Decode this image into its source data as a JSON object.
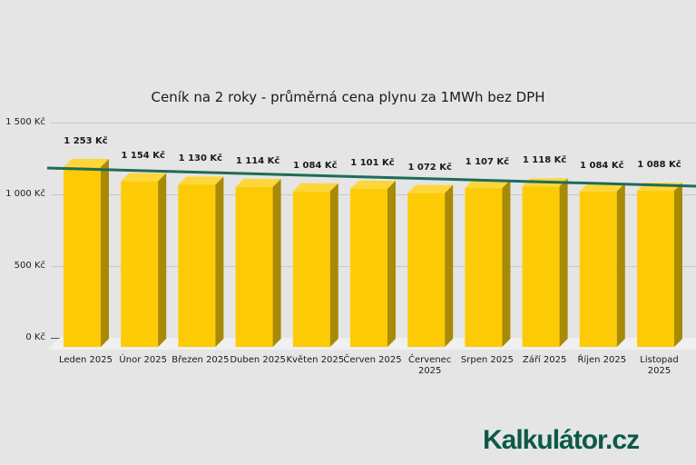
{
  "chart_data": {
    "type": "bar",
    "title": "Ceník na 2 roky - průměrná cena plynu za 1MWh bez DPH",
    "xlabel": "",
    "ylabel": "",
    "categories": [
      "Leden 2025",
      "Únor 2025",
      "Březen 2025",
      "Duben 2025",
      "Květen 2025",
      "Červen 2025",
      "Červenec 2025",
      "Srpen 2025",
      "Září 2025",
      "Říjen 2025",
      "Listopad 2025"
    ],
    "values": [
      1253,
      1154,
      1130,
      1114,
      1084,
      1101,
      1072,
      1107,
      1118,
      1084,
      1088
    ],
    "value_labels": [
      "1 253 Kč",
      "1 154 Kč",
      "1 130 Kč",
      "1 114 Kč",
      "1 084 Kč",
      "1 101 Kč",
      "1 072 Kč",
      "1 107 Kč",
      "1 118 Kč",
      "1 084 Kč",
      "1 088 Kč"
    ],
    "ylim": [
      0,
      1500
    ],
    "yticks": [
      "0 Kč",
      "500 Kč",
      "1 000 Kč",
      "1 500 Kč"
    ],
    "grid": true,
    "legend": "none",
    "trendline": {
      "type": "linear",
      "color": "#1f6b5a"
    },
    "bar_color": "#fdcb05"
  },
  "title": "Ceník na 2 roky - průměrná cena plynu za 1MWh bez DPH",
  "yaxis": {
    "ticks": [
      "1 500 Kč",
      "1 000 Kč",
      "500 Kč",
      "0 Kč"
    ]
  },
  "bars": [
    {
      "label_top": "1 253 Kč",
      "x_line1": "Leden 2025",
      "x_line2": ""
    },
    {
      "label_top": "1 154 Kč",
      "x_line1": "Únor 2025",
      "x_line2": ""
    },
    {
      "label_top": "1 130 Kč",
      "x_line1": "Březen 2025",
      "x_line2": ""
    },
    {
      "label_top": "1 114 Kč",
      "x_line1": "Duben 2025",
      "x_line2": ""
    },
    {
      "label_top": "1 084 Kč",
      "x_line1": "Květen 2025",
      "x_line2": ""
    },
    {
      "label_top": "1 101 Kč",
      "x_line1": "Červen 2025",
      "x_line2": ""
    },
    {
      "label_top": "1 072 Kč",
      "x_line1": "Červenec",
      "x_line2": "2025"
    },
    {
      "label_top": "1 107 Kč",
      "x_line1": "Srpen 2025",
      "x_line2": ""
    },
    {
      "label_top": "1 118 Kč",
      "x_line1": "Září 2025",
      "x_line2": ""
    },
    {
      "label_top": "1 084 Kč",
      "x_line1": "Říjen 2025",
      "x_line2": ""
    },
    {
      "label_top": "1 088 Kč",
      "x_line1": "Listopad",
      "x_line2": "2025"
    }
  ],
  "logo": {
    "text": "Kalkulátor.cz"
  }
}
